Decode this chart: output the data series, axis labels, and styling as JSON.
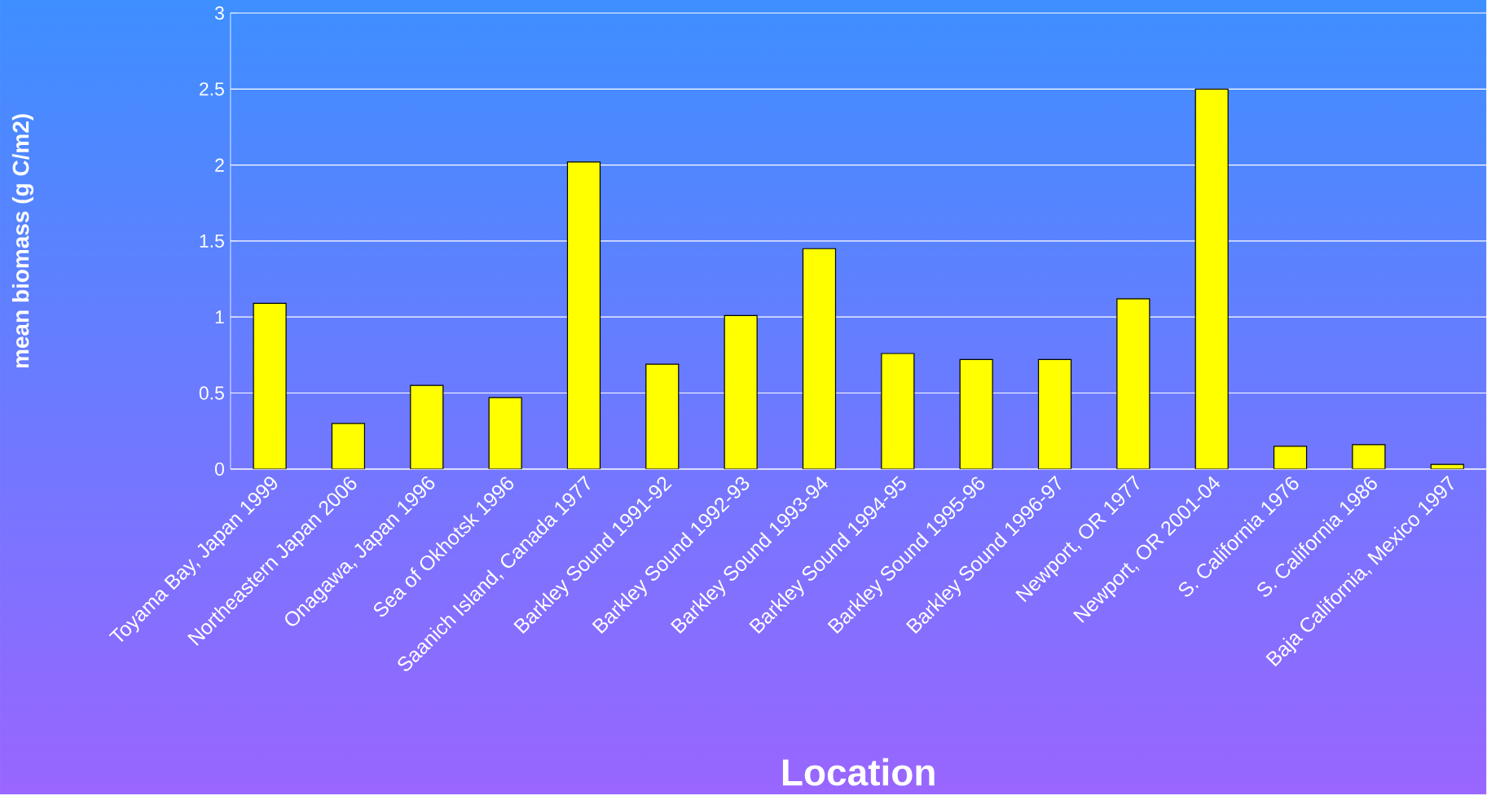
{
  "chart_data": {
    "type": "bar",
    "xlabel": "Location",
    "ylabel": "mean biomass (g C/m2)",
    "categories": [
      "Toyama Bay, Japan 1999",
      "Northeastern Japan 2006",
      "Onagawa, Japan 1996",
      "Sea of Okhotsk 1996",
      "Saanich Island, Canada 1977",
      "Barkley Sound 1991-92",
      "Barkley Sound 1992-93",
      "Barkley Sound 1993-94",
      "Barkley Sound 1994-95",
      "Barkley Sound 1995-96",
      "Barkley Sound 1996-97",
      "Newport, OR 1977",
      "Newport, OR 2001-04",
      "S. California 1976",
      "S. California 1986",
      "Baja California, Mexico 1997"
    ],
    "values": [
      1.09,
      0.3,
      0.55,
      0.47,
      2.02,
      0.69,
      1.01,
      1.45,
      0.76,
      0.72,
      0.72,
      1.12,
      2.5,
      0.15,
      0.16,
      0.03
    ],
    "color": "#ffff00",
    "ylim": [
      0,
      3
    ],
    "yticks": [
      0,
      0.5,
      1,
      1.5,
      2,
      2.5,
      3
    ],
    "grid": "y"
  }
}
